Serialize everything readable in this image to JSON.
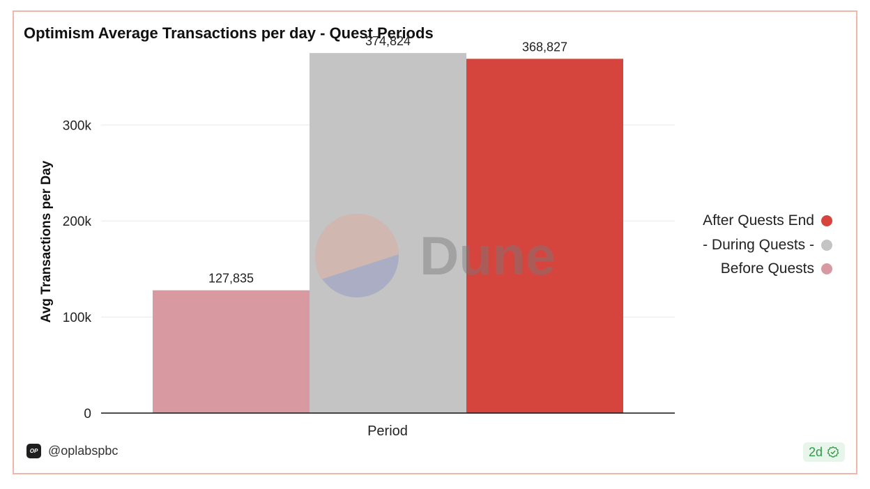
{
  "chart_data": {
    "type": "bar",
    "title": "Optimism Average Transactions per day - Quest Periods",
    "xlabel": "Period",
    "ylabel": "Avg Transactions per Day",
    "ylim": [
      0,
      380000
    ],
    "yticks": [
      0,
      100000,
      200000,
      300000
    ],
    "ytick_labels": [
      "0",
      "100k",
      "200k",
      "300k"
    ],
    "grid": true,
    "legend_position": "right",
    "series": [
      {
        "name": "Before Quests",
        "value": 127835,
        "label": "127,835",
        "color": "#d89aa0"
      },
      {
        "name": "- During Quests -",
        "value": 374824,
        "label": "374,824",
        "color": "#c4c4c4"
      },
      {
        "name": "After Quests End",
        "value": 368827,
        "label": "368,827",
        "color": "#d5443d"
      }
    ],
    "legend_order": [
      "After Quests End",
      "- During Quests -",
      "Before Quests"
    ]
  },
  "watermark": {
    "text": "Dune"
  },
  "footer": {
    "account": "@oplabspbc",
    "logo_text": "OP",
    "age_badge": "2d",
    "badge_icon": "check-circle-icon"
  },
  "colors": {
    "border": "#f0b6a8",
    "badge_bg": "#e8f5ea",
    "badge_text": "#2e9b48"
  }
}
